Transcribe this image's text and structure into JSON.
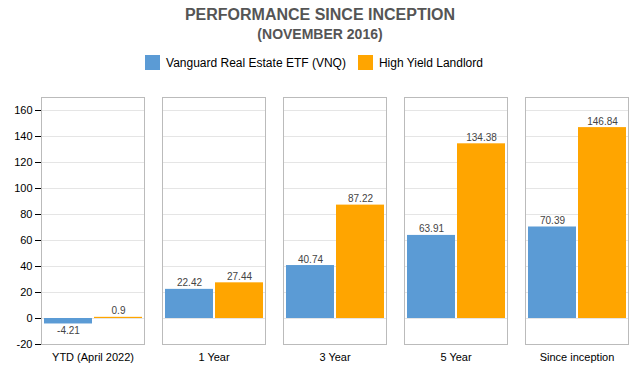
{
  "chart_data": {
    "type": "bar",
    "title": "PERFORMANCE SINCE INCEPTION",
    "subtitle": "(NOVEMBER 2016)",
    "categories": [
      "YTD (April 2022)",
      "1 Year",
      "3 Year",
      "5 Year",
      "Since inception"
    ],
    "series": [
      {
        "name": "Vanguard Real Estate ETF (VNQ)",
        "color": "#5B9BD5",
        "values": [
          -4.21,
          22.42,
          40.74,
          63.91,
          70.39
        ]
      },
      {
        "name": "High Yield Landlord",
        "color": "#FFA500",
        "values": [
          0.9,
          27.44,
          87.22,
          134.38,
          146.84
        ]
      }
    ],
    "ylim": [
      -20,
      170
    ],
    "yticks": [
      -20,
      0,
      20,
      40,
      60,
      80,
      100,
      120,
      140,
      160
    ],
    "grid": true,
    "legend": "top",
    "data_labels": true
  }
}
